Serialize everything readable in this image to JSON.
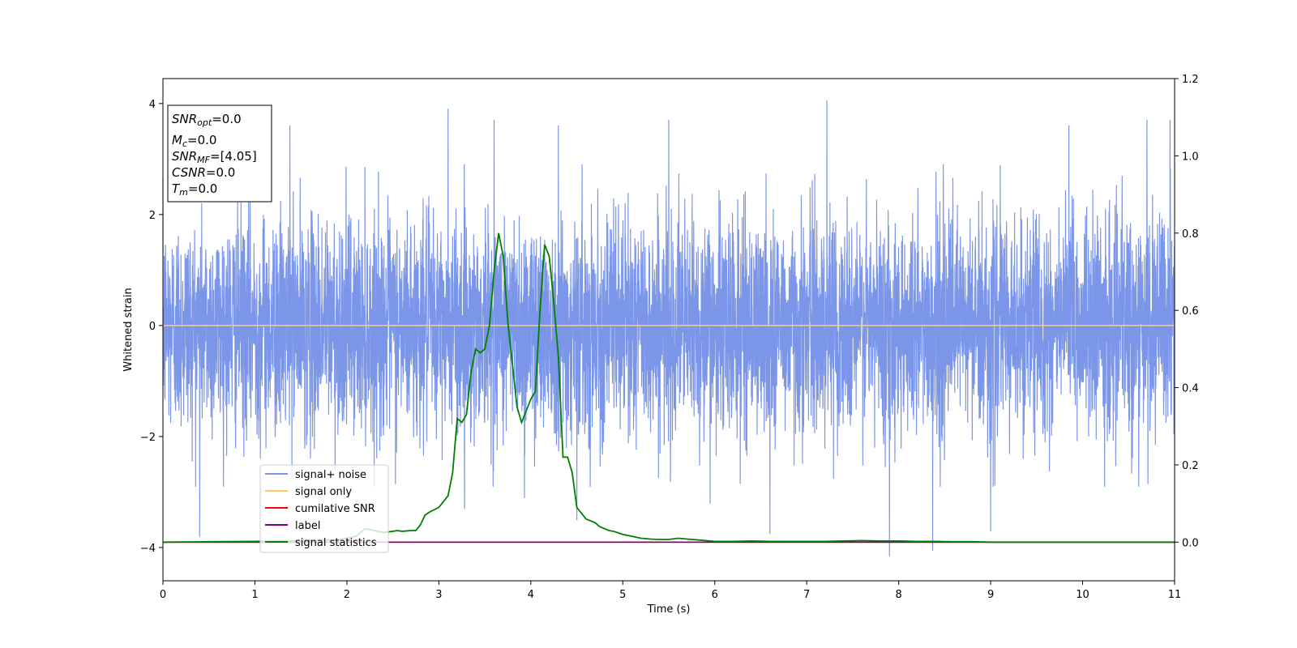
{
  "chart_data": {
    "type": "line",
    "xlabel": "Time (s)",
    "ylabel": "Whitened strain",
    "xlim": [
      0,
      11
    ],
    "ylim": [
      -4.6,
      4.45
    ],
    "y2lim": [
      -0.1,
      1.2
    ],
    "x_ticks": [
      "0",
      "1",
      "2",
      "3",
      "4",
      "5",
      "6",
      "7",
      "8",
      "9",
      "10",
      "11"
    ],
    "y_ticks": [
      "−4",
      "−2",
      "0",
      "2",
      "4"
    ],
    "y2_ticks": [
      "0.0",
      "0.2",
      "0.4",
      "0.6",
      "0.8",
      "1.0",
      "1.2"
    ],
    "grid": false,
    "legend_position": "lower-left",
    "info_box": {
      "snr_opt": {
        "main": "SNR",
        "sub": "opt",
        "value": "=0.0"
      },
      "mc": {
        "main": "M",
        "sub": "c",
        "value": "=0.0"
      },
      "snr_mf": {
        "main": "SNR",
        "sub": "MF",
        "value": "=[4.05]"
      },
      "csnr": {
        "main": "CSNR",
        "value": "=0.0"
      },
      "tm": {
        "main": "T",
        "sub": "m",
        "value": "=0.0"
      }
    },
    "series": [
      {
        "name": "signal+ noise",
        "color": "#7b96e8",
        "axis": "left",
        "representation": "dense gaussian noise, approx. 11000 samples",
        "typical_range": [
          -2.6,
          2.6
        ],
        "peaks": [
          {
            "x": 0.4,
            "y": -3.8
          },
          {
            "x": 1.38,
            "y": 3.6
          },
          {
            "x": 3.1,
            "y": 3.9
          },
          {
            "x": 3.28,
            "y": -3.3
          },
          {
            "x": 3.6,
            "y": 3.7
          },
          {
            "x": 3.93,
            "y": -3.1
          },
          {
            "x": 4.3,
            "y": 3.6
          },
          {
            "x": 4.5,
            "y": -3.5
          },
          {
            "x": 5.5,
            "y": 3.7
          },
          {
            "x": 5.95,
            "y": -3.2
          },
          {
            "x": 6.6,
            "y": -3.75
          },
          {
            "x": 7.22,
            "y": 4.05
          },
          {
            "x": 7.9,
            "y": -4.15
          },
          {
            "x": 8.37,
            "y": -4.05
          },
          {
            "x": 9.0,
            "y": -3.7
          },
          {
            "x": 9.85,
            "y": 3.6
          },
          {
            "x": 10.7,
            "y": 3.7
          },
          {
            "x": 10.95,
            "y": 3.7
          }
        ]
      },
      {
        "name": "signal only",
        "color": "#ffc869",
        "axis": "left",
        "x": [
          0,
          11
        ],
        "y": [
          0,
          0
        ]
      },
      {
        "name": "cumilative SNR",
        "color": "#ff0000",
        "axis": "right",
        "x": [
          0,
          11
        ],
        "y": [
          0,
          0
        ]
      },
      {
        "name": "label",
        "color": "#800080",
        "axis": "right",
        "x": [
          0,
          11
        ],
        "y": [
          0,
          0
        ]
      },
      {
        "name": "signal statistics",
        "color": "#008000",
        "axis": "right",
        "x": [
          0,
          0.5,
          1.0,
          1.5,
          1.9,
          2.0,
          2.1,
          2.2,
          2.3,
          2.4,
          2.5,
          2.55,
          2.6,
          2.7,
          2.75,
          2.8,
          2.85,
          2.9,
          3.0,
          3.1,
          3.15,
          3.2,
          3.25,
          3.3,
          3.35,
          3.4,
          3.45,
          3.5,
          3.55,
          3.6,
          3.65,
          3.7,
          3.75,
          3.8,
          3.85,
          3.9,
          3.95,
          4.0,
          4.05,
          4.1,
          4.15,
          4.2,
          4.25,
          4.3,
          4.35,
          4.4,
          4.45,
          4.5,
          4.55,
          4.6,
          4.7,
          4.75,
          4.8,
          4.85,
          4.9,
          5.0,
          5.1,
          5.2,
          5.3,
          5.4,
          5.5,
          5.6,
          5.7,
          5.8,
          5.9,
          6.0,
          6.2,
          6.4,
          6.6,
          6.8,
          7.0,
          7.2,
          7.4,
          7.6,
          7.8,
          8.0,
          8.2,
          8.4,
          8.6,
          8.8,
          9.0,
          9.5,
          10.0,
          10.5,
          11.0
        ],
        "y": [
          0.0,
          0.001,
          0.002,
          0.004,
          0.006,
          0.01,
          0.015,
          0.035,
          0.03,
          0.025,
          0.028,
          0.03,
          0.028,
          0.03,
          0.03,
          0.045,
          0.07,
          0.078,
          0.09,
          0.12,
          0.18,
          0.32,
          0.31,
          0.33,
          0.44,
          0.5,
          0.49,
          0.5,
          0.56,
          0.7,
          0.8,
          0.74,
          0.57,
          0.46,
          0.35,
          0.31,
          0.34,
          0.37,
          0.39,
          0.6,
          0.77,
          0.74,
          0.62,
          0.48,
          0.22,
          0.22,
          0.18,
          0.09,
          0.075,
          0.06,
          0.05,
          0.04,
          0.035,
          0.03,
          0.028,
          0.02,
          0.015,
          0.01,
          0.008,
          0.007,
          0.007,
          0.01,
          0.008,
          0.006,
          0.004,
          0.002,
          0.002,
          0.003,
          0.002,
          0.002,
          0.002,
          0.002,
          0.003,
          0.004,
          0.003,
          0.003,
          0.002,
          0.002,
          0.001,
          0.001,
          0.0,
          0.0,
          0.0,
          0.0,
          0.0
        ]
      }
    ]
  }
}
